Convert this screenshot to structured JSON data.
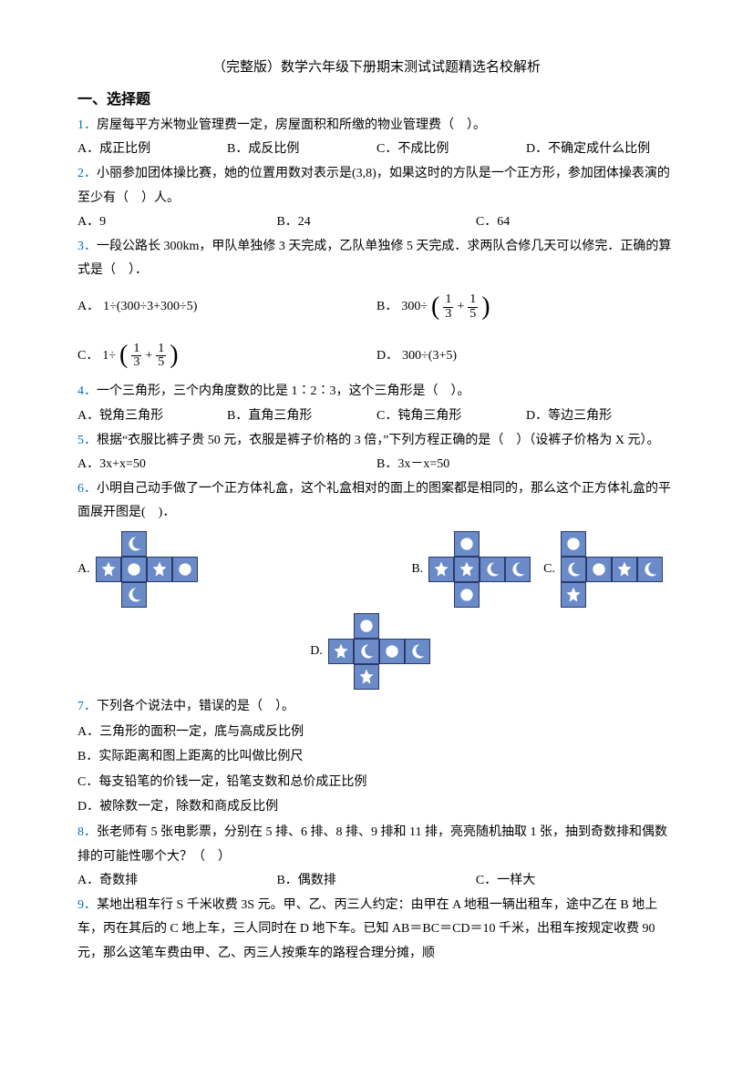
{
  "title": "（完整版）数学六年级下册期末测试试题精选名校解析",
  "section1": "一、选择题",
  "q1": {
    "text": "房屋每平方米物业管理费一定，房屋面积和所缴的物业管理费（　）。",
    "A": "A．成正比例",
    "B": "B．成反比例",
    "C": "C．不成比例",
    "D": "D．不确定成什么比例"
  },
  "q2": {
    "text": "小丽参加团体操比赛，她的位置用数对表示是(3,8)，如果这时的方队是一个正方形，参加团体操表演的至少有（　）人。",
    "A": "A．9",
    "B": "B．24",
    "C": "C．64"
  },
  "q3": {
    "text": "一段公路长 300km，甲队单独修 3 天完成，乙队单独修 5 天完成．求两队合修几天可以修完．正确的算式是（　）．",
    "A_pre": "A．",
    "A_math": "1÷(300÷3+300÷5)",
    "B_pre": "B．",
    "B_math_l": "300÷",
    "B_f1t": "1",
    "B_f1b": "3",
    "B_plus": "+",
    "B_f2t": "1",
    "B_f2b": "5",
    "C_pre": "C．",
    "C_math_l": "1÷",
    "C_f1t": "1",
    "C_f1b": "3",
    "C_plus": "+",
    "C_f2t": "1",
    "C_f2b": "5",
    "D_pre": "D．",
    "D_math": "300÷(3+5)"
  },
  "q4": {
    "text": "一个三角形，三个内角度数的比是 1∶2∶3，这个三角形是（　）。",
    "A": "A．锐角三角形",
    "B": "B．直角三角形",
    "C": "C．钝角三角形",
    "D": "D．等边三角形"
  },
  "q5": {
    "text": "根据“衣服比裤子贵 50 元，衣服是裤子价格的 3 倍，”下列方程正确的是（　）（设裤子价格为 X 元）。",
    "A": "A．3x+x=50",
    "B": "B．3x－x=50"
  },
  "q6": {
    "text": "小明自己动手做了一个正方体礼盒，这个礼盒相对的面上的图案都是相同的，那么这个正方体礼盒的平面展开图是(　)．",
    "A": "A.",
    "B": "B.",
    "C": "C.",
    "D": "D."
  },
  "q7": {
    "text": "下列各个说法中，错误的是（　）。",
    "A": "A．三角形的面积一定，底与高成反比例",
    "B": "B．实际距离和图上距离的比叫做比例尺",
    "C": "C．每支铅笔的价钱一定，铅笔支数和总价成正比例",
    "D": "D．被除数一定，除数和商成反比例"
  },
  "q8": {
    "text": "张老师有 5 张电影票，分别在 5 排、6 排、8 排、9 排和 11 排，亮亮随机抽取 1 张，抽到奇数排和偶数排的可能性哪个大？（　）",
    "A": "A．奇数排",
    "B": "B．偶数排",
    "C": "C．一样大"
  },
  "q9": {
    "text": "某地出租车行 S 千米收费 3S 元。甲、乙、丙三人约定：由甲在 A 地租一辆出租车，途中乙在 B 地上车，丙在其后的 C 地上车，三人同时在 D 地下车。已知 AB＝BC＝CD＝10 千米，出租车按规定收费 90 元，那么这笔车费由甲、乙、丙三人按乘车的路程合理分摊，顺"
  },
  "icons": {
    "moon": "moon",
    "star": "star",
    "circle": "circle"
  },
  "nets": {
    "A": [
      [
        "",
        "moon",
        "",
        ""
      ],
      [
        "star",
        "circle",
        "star",
        "circle"
      ],
      [
        "",
        "moon",
        "",
        ""
      ]
    ],
    "B": [
      [
        "",
        "circle",
        "",
        ""
      ],
      [
        "star",
        "star",
        "moon",
        "moon"
      ],
      [
        "",
        "circle",
        "",
        ""
      ]
    ],
    "C": [
      [
        "circle",
        "",
        "",
        ""
      ],
      [
        "moon",
        "circle",
        "star",
        "moon"
      ],
      [
        "star",
        "",
        "",
        ""
      ]
    ],
    "D": [
      [
        "",
        "circle",
        "",
        ""
      ],
      [
        "star",
        "moon",
        "circle",
        "moon"
      ],
      [
        "",
        "star",
        "",
        ""
      ]
    ]
  },
  "colors": {
    "face": "#6a8bc8",
    "border": "#2a3a6a",
    "qnum": "#0070c0"
  }
}
